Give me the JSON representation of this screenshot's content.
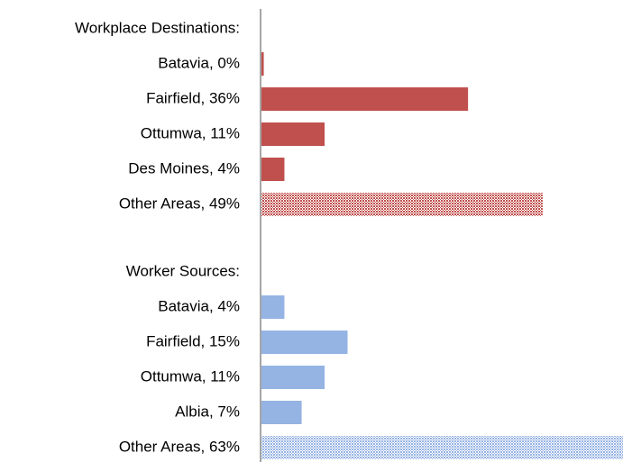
{
  "chart_data": {
    "type": "bar",
    "orientation": "horizontal",
    "xlim": [
      0,
      63
    ],
    "series": [
      {
        "name": "Workplace Destinations:",
        "color": "#c0504d",
        "categories": [
          "Batavia, 0%",
          "Fairfield, 36%",
          "Ottumwa, 11%",
          "Des Moines, 4%",
          "Other Areas, 49%"
        ],
        "values": [
          0.4,
          36,
          11,
          4,
          49
        ],
        "hatched": [
          false,
          false,
          false,
          false,
          true
        ]
      },
      {
        "name": "Worker Sources:",
        "color": "#95b3e3",
        "categories": [
          "Batavia, 4%",
          "Fairfield, 15%",
          "Ottumwa, 11%",
          "Albia, 7%",
          "Other Areas, 63%"
        ],
        "values": [
          4,
          15,
          11,
          7,
          63
        ],
        "hatched": [
          false,
          false,
          false,
          false,
          true
        ]
      }
    ]
  }
}
